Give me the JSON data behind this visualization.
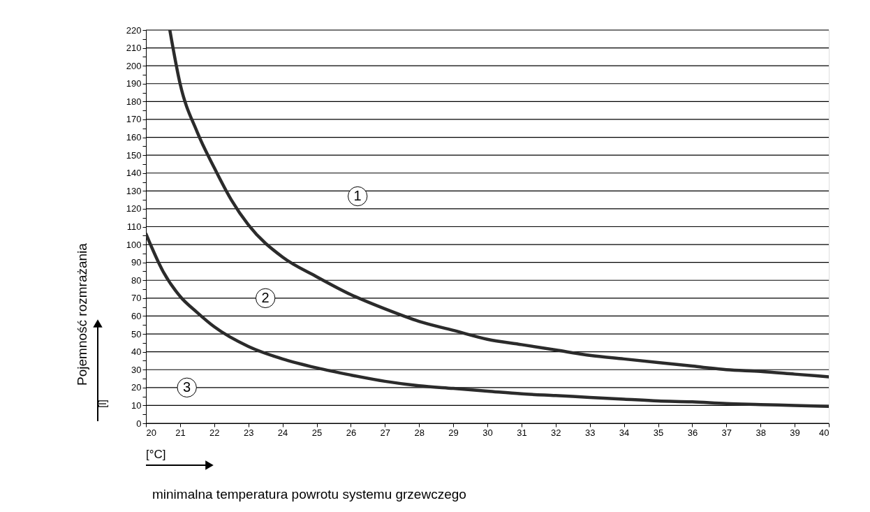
{
  "chart_data": {
    "type": "line",
    "ylabel": "Pojemność rozmrażania",
    "xlabel": "minimalna temperatura powrotu systemu grzewczego",
    "x": [
      20,
      20.5,
      21,
      21.5,
      22,
      23,
      24,
      25,
      26,
      27,
      28,
      29,
      30,
      31,
      32,
      33,
      34,
      35,
      36,
      37,
      38,
      39,
      40
    ],
    "series": [
      {
        "color": "#2b2b2b",
        "x": [
          20.7,
          21,
          21.5,
          22,
          22.5,
          23,
          24,
          25,
          26,
          27,
          28,
          29,
          30,
          31,
          32,
          33,
          34,
          35,
          36,
          37,
          38,
          39,
          40
        ],
        "values": [
          220,
          190,
          163,
          143,
          125,
          111,
          93,
          82,
          72,
          64,
          57,
          52,
          47,
          44,
          41,
          38,
          36,
          34,
          32,
          30,
          29,
          27.5,
          26
        ]
      },
      {
        "color": "#2b2b2b",
        "values": [
          106,
          85,
          71,
          62,
          54,
          43,
          36,
          31,
          27,
          23.5,
          21,
          19.5,
          18,
          16.5,
          15.5,
          14.5,
          13.5,
          12.5,
          12,
          11,
          10.5,
          10,
          9.5
        ]
      }
    ],
    "xlim": [
      20,
      40
    ],
    "xticks": [
      20,
      21,
      22,
      23,
      24,
      25,
      26,
      27,
      28,
      29,
      30,
      31,
      32,
      33,
      34,
      35,
      36,
      37,
      38,
      39,
      40
    ],
    "ylim": [
      0,
      220
    ],
    "yticks": [
      0,
      {
        "value": 5,
        "label": null
      },
      10,
      {
        "value": 15,
        "label": null
      },
      20,
      {
        "value": 25,
        "label": null
      },
      30,
      {
        "value": 35,
        "label": null
      },
      40,
      {
        "value": 45,
        "label": null
      },
      50,
      {
        "value": 55,
        "label": null
      },
      60,
      {
        "value": 65,
        "label": null
      },
      70,
      {
        "value": 75,
        "label": null
      },
      80,
      {
        "value": 85,
        "label": null
      },
      90,
      {
        "value": 95,
        "label": null
      },
      100,
      {
        "value": 105,
        "label": null
      },
      110,
      {
        "value": 115,
        "label": null
      },
      120,
      {
        "value": 125,
        "label": null
      },
      130,
      {
        "value": 135,
        "label": null
      },
      140,
      {
        "value": 145,
        "label": null
      },
      150,
      {
        "value": 155,
        "label": null
      },
      160,
      {
        "value": 165,
        "label": null
      },
      170,
      {
        "value": 175,
        "label": null
      },
      180,
      {
        "value": 185,
        "label": null
      },
      190,
      {
        "value": 195,
        "label": null
      },
      200,
      {
        "value": 205,
        "label": null
      },
      210,
      {
        "value": 215,
        "label": null
      },
      220
    ],
    "grid": "y",
    "marker": "none",
    "line_style": "solid",
    "annotations": [
      {
        "text": "1",
        "x": 26.2,
        "y": 127
      },
      {
        "text": "2",
        "x": 23.5,
        "y": 70
      },
      {
        "text": "3",
        "x": 21.2,
        "y": 20
      },
      "[l]",
      "[°C]"
    ]
  }
}
